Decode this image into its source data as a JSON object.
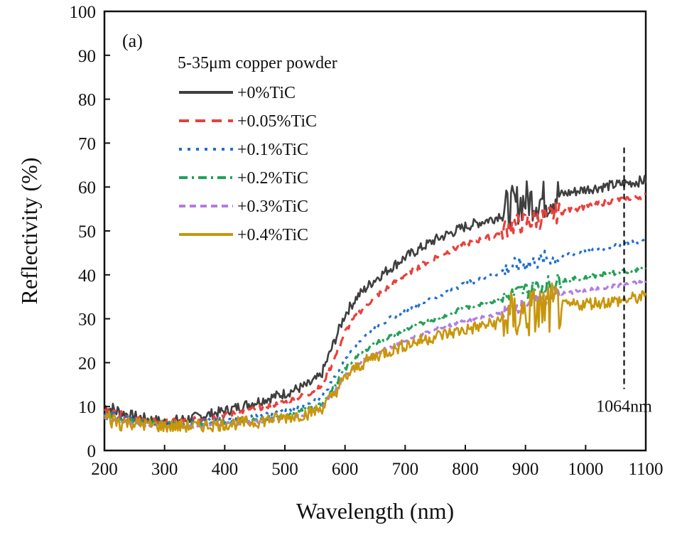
{
  "chart_data": {
    "type": "line",
    "panel_label": "(a)",
    "xlabel": "Wavelength (nm)",
    "ylabel": "Reflectivity (%)",
    "xlim": [
      200,
      1100
    ],
    "ylim": [
      0,
      100
    ],
    "xticks": [
      200,
      300,
      400,
      500,
      600,
      700,
      800,
      900,
      1000,
      1100
    ],
    "yticks": [
      0,
      10,
      20,
      30,
      40,
      50,
      60,
      70,
      80,
      90,
      100
    ],
    "grid": false,
    "legend_title": "5-35μm copper powder",
    "legend_position": "top-left",
    "x": [
      200,
      230,
      260,
      300,
      350,
      400,
      450,
      500,
      540,
      560,
      580,
      600,
      620,
      650,
      700,
      750,
      800,
      850,
      870,
      900,
      930,
      950,
      1000,
      1050,
      1100
    ],
    "series": [
      {
        "name": "+0%TiC",
        "color": "#3f3f3f",
        "dash": "solid",
        "noise": 1.2,
        "values": [
          10,
          8.5,
          7.5,
          6.5,
          7.5,
          9,
          11,
          13,
          15,
          17,
          24,
          31,
          35,
          39,
          44,
          48,
          51,
          53,
          55,
          57,
          57,
          58,
          59.5,
          60.5,
          61.5
        ]
      },
      {
        "name": "+0.05%TiC",
        "color": "#e8413c",
        "dash": "14 9",
        "noise": 0.6,
        "values": [
          9,
          8,
          7,
          6.5,
          7,
          8,
          9.5,
          11,
          13,
          14.5,
          20,
          27,
          31,
          35,
          40,
          44,
          47,
          49,
          51,
          52,
          53,
          54,
          55.5,
          57,
          58
        ]
      },
      {
        "name": "+0.1%TiC",
        "color": "#1f6fd1",
        "dash": "4 8",
        "noise": 0.5,
        "values": [
          8.5,
          7.5,
          6.5,
          6,
          6.5,
          7,
          8,
          9,
          10.5,
          12,
          16,
          21,
          24.5,
          28,
          32,
          35,
          38,
          40,
          41.5,
          42.5,
          43.5,
          44,
          45.5,
          46.5,
          48
        ]
      },
      {
        "name": "+0.2%TiC",
        "color": "#23a05a",
        "dash": "12 6 3 6",
        "noise": 0.5,
        "values": [
          8,
          7,
          6.5,
          6,
          6,
          6.5,
          7,
          8,
          9.5,
          10.5,
          14,
          18.5,
          21.5,
          24.5,
          27.5,
          30,
          32.5,
          34,
          35,
          36.5,
          37.5,
          38.5,
          39.5,
          40.5,
          41.5
        ]
      },
      {
        "name": "+0.3%TiC",
        "color": "#b07de0",
        "dash": "9 6",
        "noise": 0.4,
        "values": [
          7.5,
          6.5,
          6,
          5.5,
          5.5,
          6,
          6.5,
          7.5,
          8.5,
          9.5,
          13,
          17,
          19.5,
          22,
          25,
          27.5,
          29.5,
          31,
          32,
          33.5,
          34.5,
          35.5,
          36.5,
          37.5,
          38.5
        ]
      },
      {
        "name": "+0.4%TiC",
        "color": "#c8960a",
        "dash": "solid",
        "noise": 1.5,
        "values": [
          7.5,
          6.5,
          6,
          5.5,
          5.5,
          6,
          6.5,
          7.5,
          8.5,
          9.5,
          12.5,
          16.5,
          19,
          21.5,
          24,
          26,
          27.5,
          29,
          30,
          31,
          32,
          32.5,
          33.5,
          34,
          35
        ]
      }
    ],
    "annotations": [
      {
        "text": "1064nm",
        "x": 1064,
        "y_range": [
          14,
          69
        ],
        "style": "dashed-vertical"
      }
    ]
  }
}
